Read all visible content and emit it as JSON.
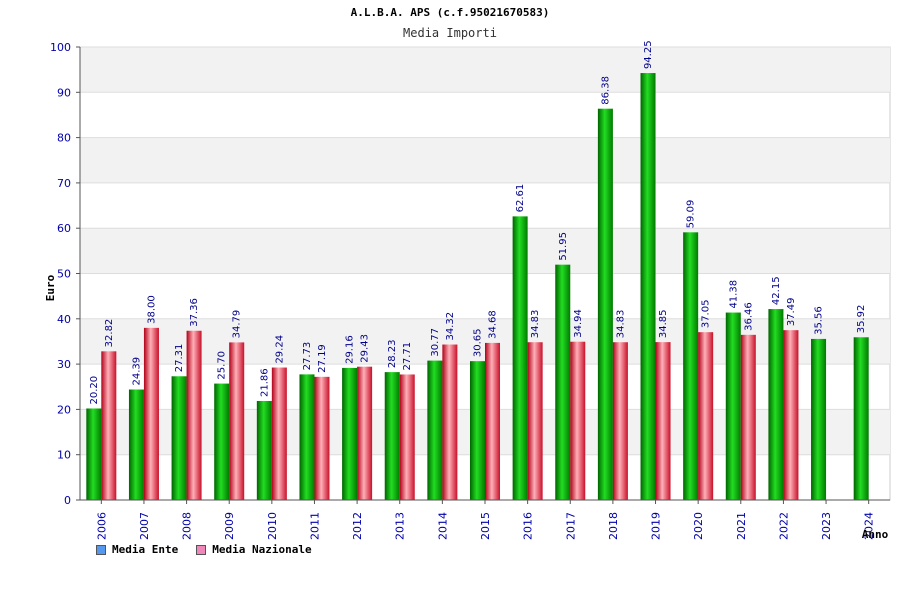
{
  "header": {
    "title": "A.L.B.A. APS (c.f.95021670583)",
    "subtitle": "Media Importi"
  },
  "legend": {
    "items": [
      {
        "label": "Media Ente",
        "color": "#5599ee"
      },
      {
        "label": "Media Nazionale",
        "color": "#ee88bb"
      }
    ]
  },
  "colors": {
    "ente": "#00b000",
    "nazionale": "#e03040"
  },
  "chart_data": {
    "type": "bar",
    "title": "Media Importi",
    "xlabel": "Anno",
    "ylabel": "Euro",
    "ylim": [
      0,
      100
    ],
    "yticks": [
      0,
      10,
      20,
      30,
      40,
      50,
      60,
      70,
      80,
      90,
      100
    ],
    "grid": true,
    "legend_position": "bottom-left",
    "categories": [
      "2006",
      "2007",
      "2008",
      "2009",
      "2010",
      "2011",
      "2012",
      "2013",
      "2014",
      "2015",
      "2016",
      "2017",
      "2018",
      "2019",
      "2020",
      "2021",
      "2022",
      "2023",
      "2024"
    ],
    "series": [
      {
        "name": "Media Ente",
        "values": [
          20.2,
          24.39,
          27.31,
          25.7,
          21.86,
          27.73,
          29.16,
          28.23,
          30.77,
          30.65,
          62.61,
          51.95,
          86.38,
          94.25,
          59.09,
          41.38,
          42.15,
          35.56,
          35.92
        ],
        "labels": [
          "20.20",
          "24.39",
          "27.31",
          "25.70",
          "21.86",
          "27.73",
          "29.16",
          "28.23",
          "30.77",
          "30.65",
          "62.61",
          "51.95",
          "86.38",
          "94.25",
          "59.09",
          "41.38",
          "42.15",
          "35.56",
          "35.92"
        ]
      },
      {
        "name": "Media Nazionale",
        "values": [
          32.82,
          38.0,
          37.36,
          34.79,
          29.24,
          27.19,
          29.43,
          27.71,
          34.32,
          34.68,
          34.83,
          34.94,
          34.83,
          34.85,
          37.05,
          36.46,
          37.49,
          null,
          null
        ],
        "labels": [
          "32.82",
          "38.00",
          "37.36",
          "34.79",
          "29.24",
          "27.19",
          "29.43",
          "27.71",
          "34.32",
          "34.68",
          "34.83",
          "34.94",
          "34.83",
          "34.85",
          "37.05",
          "36.46",
          "37.49",
          null,
          null
        ]
      }
    ]
  }
}
